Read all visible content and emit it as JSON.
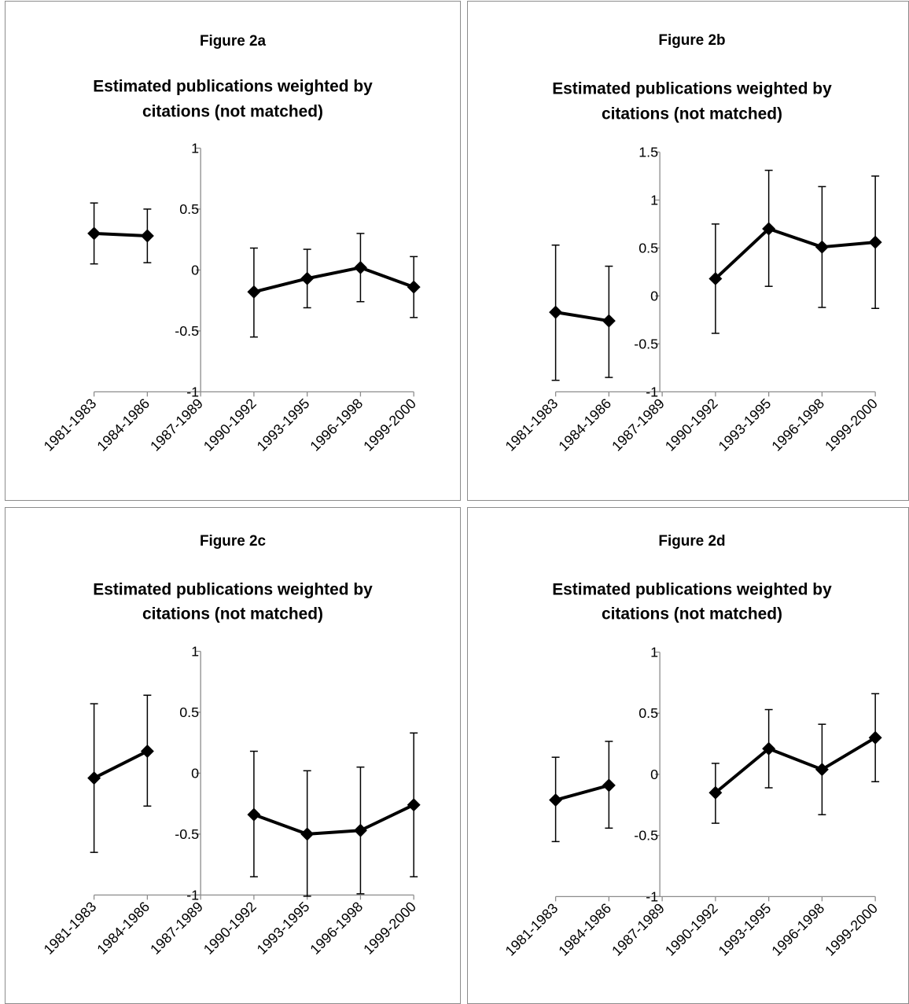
{
  "chart_data": [
    {
      "type": "line",
      "figure_label": "Figure 2a",
      "title_lines": [
        "Estimated publications weighted by",
        "citations (not matched)"
      ],
      "categories": [
        "1981-1983",
        "1984-1986",
        "1987-1989",
        "1990-1992",
        "1993-1995",
        "1996-1998",
        "1999-2000"
      ],
      "yticks": [
        "-1",
        "-0.5",
        "0",
        "0.5",
        "1"
      ],
      "ylim": [
        -1,
        1
      ],
      "series": [
        {
          "values": [
            0.3,
            0.28,
            null,
            -0.18,
            -0.07,
            0.02,
            -0.14
          ],
          "err_low": [
            0.05,
            0.06,
            null,
            -0.55,
            -0.31,
            -0.26,
            -0.39
          ],
          "err_high": [
            0.55,
            0.5,
            null,
            0.18,
            0.17,
            0.3,
            0.11
          ]
        }
      ],
      "grid": false,
      "legend": "none"
    },
    {
      "type": "line",
      "figure_label": "Figure 2b",
      "title_lines": [
        "Estimated publications weighted by",
        "citations (not matched)"
      ],
      "categories": [
        "1981-1983",
        "1984-1986",
        "1987-1989",
        "1990-1992",
        "1993-1995",
        "1996-1998",
        "1999-2000"
      ],
      "yticks": [
        "-1",
        "-0.5",
        "0",
        "0.5",
        "1",
        "1.5"
      ],
      "ylim": [
        -1,
        1.5
      ],
      "series": [
        {
          "values": [
            -0.17,
            -0.26,
            null,
            0.18,
            0.7,
            0.51,
            0.56
          ],
          "err_low": [
            -0.88,
            -0.85,
            null,
            -0.39,
            0.1,
            -0.12,
            -0.13
          ],
          "err_high": [
            0.53,
            0.31,
            null,
            0.75,
            1.31,
            1.14,
            1.25
          ]
        }
      ],
      "grid": false,
      "legend": "none"
    },
    {
      "type": "line",
      "figure_label": "Figure 2c",
      "title_lines": [
        "Estimated publications weighted by",
        "citations (not matched)"
      ],
      "categories": [
        "1981-1983",
        "1984-1986",
        "1987-1989",
        "1990-1992",
        "1993-1995",
        "1996-1998",
        "1999-2000"
      ],
      "yticks": [
        "-1",
        "-0.5",
        "0",
        "0.5",
        "1"
      ],
      "ylim": [
        -1,
        1
      ],
      "series": [
        {
          "values": [
            -0.04,
            0.18,
            null,
            -0.34,
            -0.5,
            -0.47,
            -0.26
          ],
          "err_low": [
            -0.65,
            -0.27,
            null,
            -0.85,
            -1.01,
            -0.99,
            -0.85
          ],
          "err_high": [
            0.57,
            0.64,
            null,
            0.18,
            0.02,
            0.05,
            0.33
          ]
        }
      ],
      "grid": false,
      "legend": "none"
    },
    {
      "type": "line",
      "figure_label": "Figure 2d",
      "title_lines": [
        "Estimated publications weighted by",
        "citations (not matched)"
      ],
      "categories": [
        "1981-1983",
        "1984-1986",
        "1987-1989",
        "1990-1992",
        "1993-1995",
        "1996-1998",
        "1999-2000"
      ],
      "yticks": [
        "-1",
        "-0.5",
        "0",
        "0.5",
        "1"
      ],
      "ylim": [
        -1,
        1
      ],
      "series": [
        {
          "values": [
            -0.21,
            -0.09,
            null,
            -0.15,
            0.21,
            0.04,
            0.3
          ],
          "err_low": [
            -0.55,
            -0.44,
            null,
            -0.4,
            -0.11,
            -0.33,
            -0.06
          ],
          "err_high": [
            0.14,
            0.27,
            null,
            0.09,
            0.53,
            0.41,
            0.66
          ]
        }
      ],
      "grid": false,
      "legend": "none"
    }
  ]
}
